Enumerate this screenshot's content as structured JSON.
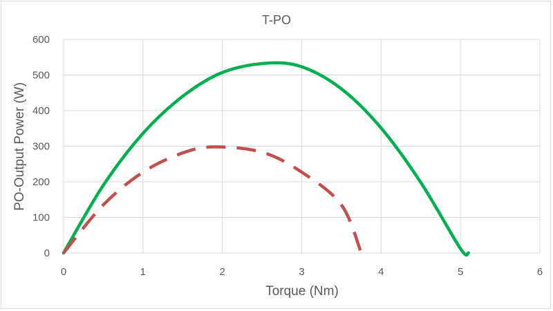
{
  "chart_data": {
    "type": "line",
    "title": "T-PO",
    "xlabel": "Torque (Nm)",
    "ylabel": "PO-Output Power (W)",
    "xlim": [
      0,
      6
    ],
    "ylim": [
      0,
      600
    ],
    "xticks": [
      0,
      1,
      2,
      3,
      4,
      5,
      6
    ],
    "yticks": [
      0,
      100,
      200,
      300,
      400,
      500,
      600
    ],
    "grid": true,
    "legend": "none",
    "series": [
      {
        "color": "#00b050",
        "dash": "solid",
        "x": [
          0,
          0.5,
          1.0,
          1.5,
          2.0,
          2.55,
          3.0,
          3.5,
          4.0,
          4.5,
          5.0,
          5.1
        ],
        "y": [
          0,
          190,
          336,
          440,
          507,
          533,
          523,
          461,
          351,
          198,
          12,
          0
        ]
      },
      {
        "color": "#c0504d",
        "dash": "dashed",
        "x": [
          0,
          0.5,
          1.0,
          1.5,
          1.9,
          2.5,
          3.0,
          3.5,
          3.75
        ],
        "y": [
          0,
          135,
          227,
          281,
          298,
          283,
          227,
          135,
          0
        ]
      }
    ]
  }
}
